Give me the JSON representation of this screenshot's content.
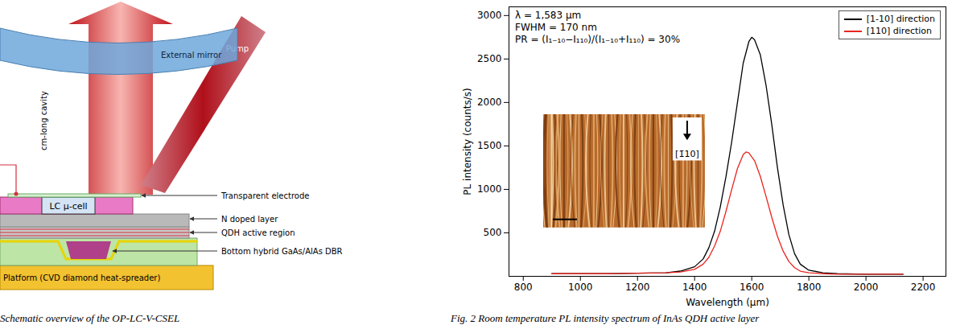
{
  "diagram": {
    "external_mirror": "External mirror",
    "pump": "Pump",
    "cavity": "cm-long cavity",
    "lc_cell": "LC µ-cell",
    "platform": "Platform (CVD diamond heat-spreader)",
    "layers": [
      "Transparent electrode",
      "N doped layer",
      "QDH active region",
      "Bottom hybrid GaAs/AlAs DBR"
    ]
  },
  "chart_data": {
    "type": "line",
    "x_label": "Wavelength (µm)",
    "y_label": "PL intensity (counts/s)",
    "xlim": [
      750,
      2280
    ],
    "xticks": [
      800,
      1000,
      1200,
      1400,
      1600,
      1800,
      2000,
      2200
    ],
    "ylim": [
      0,
      3100
    ],
    "yticks": [
      500,
      1000,
      1500,
      2000,
      2500,
      3000
    ],
    "grid": false,
    "legend": "top-right",
    "annotations": [
      "λ = 1,583 µm",
      "FWHM = 170 nm",
      "PR = (I₁₋₁₀−I₁₁₀)/(I₁₋₁₀+I₁₁₀) = 30%"
    ],
    "inset_label": "[1̄10]",
    "series": [
      {
        "name": "[1-10] direction",
        "color": "#000000",
        "x": [
          900,
          1000,
          1100,
          1200,
          1300,
          1350,
          1400,
          1430,
          1450,
          1470,
          1490,
          1510,
          1530,
          1550,
          1570,
          1590,
          1600,
          1610,
          1630,
          1650,
          1670,
          1690,
          1710,
          1730,
          1750,
          1770,
          1800,
          1850,
          1900,
          2000,
          2130
        ],
        "values": [
          30,
          30,
          30,
          35,
          40,
          60,
          110,
          200,
          330,
          520,
          800,
          1150,
          1550,
          2000,
          2450,
          2700,
          2750,
          2720,
          2550,
          2200,
          1750,
          1250,
          820,
          480,
          260,
          140,
          70,
          40,
          30,
          25,
          25
        ]
      },
      {
        "name": "[110] direction",
        "color": "#e8251f",
        "x": [
          900,
          1000,
          1100,
          1200,
          1300,
          1350,
          1400,
          1430,
          1450,
          1470,
          1490,
          1510,
          1530,
          1550,
          1570,
          1580,
          1590,
          1610,
          1630,
          1650,
          1670,
          1690,
          1710,
          1730,
          1750,
          1770,
          1800,
          1850,
          1900,
          2000,
          2130
        ],
        "values": [
          30,
          30,
          30,
          35,
          40,
          50,
          80,
          140,
          220,
          350,
          520,
          750,
          1000,
          1240,
          1400,
          1430,
          1420,
          1330,
          1150,
          920,
          680,
          460,
          290,
          170,
          100,
          60,
          40,
          30,
          25,
          25,
          25
        ]
      }
    ]
  },
  "captions": [
    "Schematic overview of the OP-LC-V-CSEL",
    "Fig. 2 Room temperature PL intensity spectrum of InAs QDH active layer"
  ]
}
